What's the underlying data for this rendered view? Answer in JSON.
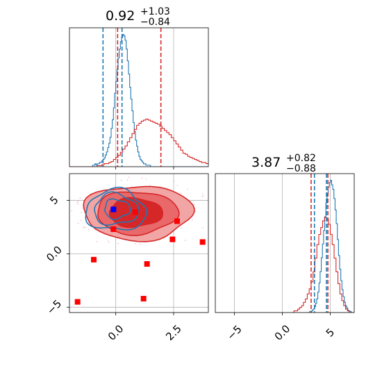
{
  "colors": {
    "red": "#d62728",
    "blue": "#1f77b4",
    "marker_red": "#ff0000",
    "marker_blue": "#0000ff",
    "grid": "#b0b0b0",
    "fill_dark": "#d62728",
    "fill_mid": "#e9696a",
    "fill_light": "#f2a5a5"
  },
  "chart_data": [
    {
      "type": "histogram",
      "panel": "top-left",
      "title": {
        "value": "0.92",
        "upper": "+1.03",
        "lower": "−0.84"
      },
      "xlim": [
        -2.0,
        4.0
      ],
      "x_ticks": [
        0.0,
        2.5
      ],
      "series": [
        {
          "color": "blue",
          "x_start": -1.6,
          "bin_width": 0.05,
          "counts": [
            0,
            0,
            0,
            0,
            0,
            0,
            0,
            0,
            0,
            0,
            0,
            0,
            1,
            1,
            2,
            1,
            2,
            2,
            3,
            3,
            4,
            5,
            6,
            8,
            10,
            13,
            16,
            20,
            26,
            32,
            40,
            50,
            58,
            66,
            74,
            80,
            85,
            88,
            90,
            89,
            86,
            80,
            72,
            63,
            54,
            46,
            38,
            30,
            24,
            18,
            14,
            10,
            7,
            5,
            4,
            3,
            2,
            2,
            1,
            1,
            1,
            1,
            0,
            0,
            0,
            0,
            0,
            0,
            0,
            0,
            0,
            0,
            0,
            0,
            0,
            0,
            0,
            0,
            0,
            0,
            0,
            0,
            0,
            0,
            0,
            0,
            0,
            0,
            0,
            0,
            0,
            0,
            0,
            0,
            0,
            0,
            0,
            0,
            0,
            0,
            0,
            0,
            0,
            0,
            0,
            0,
            0,
            0,
            0,
            0,
            0,
            0,
            0,
            0,
            0,
            0,
            0,
            0,
            0,
            0
          ]
        },
        {
          "color": "red",
          "x_start": -2.0,
          "bin_width": 0.1,
          "counts": [
            0,
            0,
            0,
            0,
            0,
            0,
            0,
            0,
            0,
            0,
            0,
            0,
            1,
            1,
            2,
            3,
            3,
            4,
            5,
            7,
            9,
            11,
            14,
            17,
            20,
            24,
            28,
            32,
            36,
            40,
            42,
            44,
            45,
            46,
            45,
            44,
            43,
            42,
            41,
            39,
            37,
            35,
            33,
            31,
            28,
            25,
            22,
            19,
            16,
            13,
            12,
            10,
            9,
            8,
            7,
            6,
            5,
            4,
            4,
            3,
            3,
            2
          ]
        }
      ],
      "vlines": [
        {
          "x": -0.55,
          "color": "blue"
        },
        {
          "x": 0.27,
          "color": "blue"
        },
        {
          "x": 0.08,
          "color": "red"
        },
        {
          "x": 1.95,
          "color": "red"
        }
      ]
    },
    {
      "type": "contour",
      "panel": "bottom-left",
      "xlim": [
        -2.0,
        4.0
      ],
      "ylim": [
        -5.5,
        7.5
      ],
      "x_ticks": [
        0.0,
        2.5
      ],
      "y_ticks": [
        -5,
        0,
        5
      ],
      "red_contours": [
        {
          "level": "outer",
          "cx": 0.95,
          "cy": 3.85,
          "rx": 2.35,
          "ry": 2.55
        },
        {
          "level": "middle",
          "cx": 0.9,
          "cy": 3.85,
          "rx": 1.75,
          "ry": 2.0
        },
        {
          "level": "inner",
          "cx": 0.85,
          "cy": 3.85,
          "rx": 1.15,
          "ry": 1.35
        }
      ],
      "blue_contours": [
        {
          "cx": 0.05,
          "cy": 4.2,
          "rx": 0.55,
          "ry": 0.9
        },
        {
          "cx": 0.0,
          "cy": 4.15,
          "rx": 0.95,
          "ry": 1.45
        },
        {
          "cx": 0.0,
          "cy": 4.05,
          "rx": 1.3,
          "ry": 1.9
        }
      ],
      "red_markers": [
        {
          "x": 0.85,
          "y": 3.9
        },
        {
          "x": 2.65,
          "y": 3.05
        },
        {
          "x": -0.1,
          "y": 2.3
        },
        {
          "x": 2.45,
          "y": 1.35
        },
        {
          "x": 3.75,
          "y": 1.1
        },
        {
          "x": -0.95,
          "y": -0.55
        },
        {
          "x": 1.35,
          "y": -0.95
        },
        {
          "x": -1.65,
          "y": -4.5
        },
        {
          "x": 1.2,
          "y": -4.2
        }
      ],
      "blue_markers": [
        {
          "x": -0.1,
          "y": 4.15
        }
      ]
    },
    {
      "type": "histogram",
      "panel": "bottom-right",
      "title": {
        "value": "3.87",
        "upper": "+0.82",
        "lower": "−0.88"
      },
      "xlim": [
        -7.0,
        7.5
      ],
      "x_ticks": [
        -5,
        0,
        5
      ],
      "series": [
        {
          "color": "blue",
          "x_start": 2.5,
          "bin_width": 0.12,
          "counts": [
            0,
            0,
            0,
            1,
            1,
            2,
            3,
            5,
            8,
            12,
            18,
            26,
            36,
            48,
            60,
            72,
            84,
            96,
            104,
            110,
            114,
            116,
            112,
            108,
            100,
            90,
            78,
            64,
            50,
            38,
            28,
            20,
            14,
            9,
            6,
            4,
            2,
            1,
            1,
            0,
            0,
            0
          ]
        },
        {
          "color": "red",
          "x_start": 1.0,
          "bin_width": 0.2,
          "counts": [
            0,
            1,
            1,
            2,
            3,
            4,
            6,
            8,
            11,
            14,
            18,
            24,
            32,
            40,
            46,
            50,
            54,
            56,
            55,
            52,
            46,
            40,
            32,
            24,
            17,
            11,
            7,
            4,
            2,
            1,
            0,
            0
          ]
        }
      ],
      "vlines": [
        {
          "x": 3.0,
          "color": "red"
        },
        {
          "x": 3.35,
          "color": "blue"
        },
        {
          "x": 4.6,
          "color": "blue"
        },
        {
          "x": 4.75,
          "color": "red"
        }
      ]
    }
  ]
}
